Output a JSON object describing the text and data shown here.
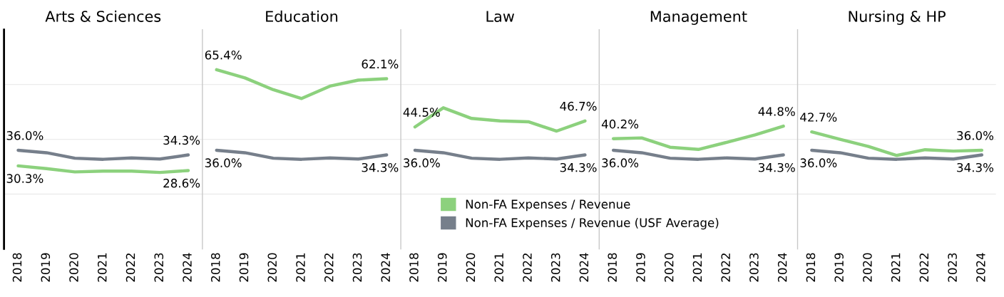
{
  "chart_data": [
    {
      "type": "line",
      "title": "Arts & Sciences",
      "categories": [
        "2018",
        "2019",
        "2020",
        "2021",
        "2022",
        "2023",
        "2024"
      ],
      "ylim": [
        0,
        80
      ],
      "yticks": [
        {
          "value": 20,
          "label": null
        },
        {
          "value": 40,
          "label": null
        },
        {
          "value": 60,
          "label": null
        }
      ],
      "grid": "y",
      "tick_labels": "x",
      "legend": false,
      "series": [
        {
          "color": "#8cd17d",
          "values": [
            30.3,
            29.3,
            28.1,
            28.4,
            28.4,
            27.9,
            28.6
          ],
          "value_labels": [
            "30.3%",
            null,
            null,
            null,
            null,
            null,
            "28.6%"
          ]
        },
        {
          "color": "#767f8b",
          "values": [
            36.0,
            35.1,
            33.1,
            32.7,
            33.2,
            32.8,
            34.3
          ],
          "value_labels": [
            "36.0%",
            null,
            null,
            null,
            null,
            null,
            "34.3%"
          ]
        }
      ]
    },
    {
      "type": "line",
      "title": "Education",
      "categories": [
        "2018",
        "2019",
        "2020",
        "2021",
        "2022",
        "2023",
        "2024"
      ],
      "ylim": [
        0,
        80
      ],
      "yticks": [
        {
          "value": 20,
          "label": null
        },
        {
          "value": 40,
          "label": null
        },
        {
          "value": 60,
          "label": null
        }
      ],
      "grid": "y",
      "tick_labels": "x",
      "legend": false,
      "series": [
        {
          "color": "#8cd17d",
          "values": [
            65.4,
            62.4,
            58.1,
            54.9,
            59.4,
            61.6,
            62.1
          ],
          "value_labels": [
            "65.4%",
            null,
            null,
            null,
            null,
            null,
            "62.1%"
          ]
        },
        {
          "color": "#767f8b",
          "values": [
            36.0,
            35.1,
            33.1,
            32.7,
            33.2,
            32.8,
            34.3
          ],
          "value_labels": [
            "36.0%",
            null,
            null,
            null,
            null,
            null,
            "34.3%"
          ]
        }
      ]
    },
    {
      "type": "line",
      "title": "Law",
      "categories": [
        "2018",
        "2019",
        "2020",
        "2021",
        "2022",
        "2023",
        "2024"
      ],
      "ylim": [
        0,
        80
      ],
      "yticks": [
        {
          "value": 20,
          "label": null
        },
        {
          "value": 40,
          "label": null
        },
        {
          "value": 60,
          "label": null
        }
      ],
      "grid": "y",
      "tick_labels": "x",
      "legend": "bottom",
      "series": [
        {
          "name": "Non-FA Expenses / Revenue",
          "color": "#8cd17d",
          "values": [
            44.5,
            51.5,
            47.6,
            46.7,
            46.4,
            43.0,
            46.7
          ],
          "value_labels": [
            "44.5%",
            null,
            null,
            null,
            null,
            null,
            "46.7%"
          ]
        },
        {
          "name": "Non-FA Expenses / Revenue (USF Average)",
          "color": "#767f8b",
          "values": [
            36.0,
            35.1,
            33.1,
            32.7,
            33.2,
            32.8,
            34.3
          ],
          "value_labels": [
            "36.0%",
            null,
            null,
            null,
            null,
            null,
            "34.3%"
          ]
        }
      ]
    },
    {
      "type": "line",
      "title": "Management",
      "categories": [
        "2018",
        "2019",
        "2020",
        "2021",
        "2022",
        "2023",
        "2024"
      ],
      "ylim": [
        0,
        80
      ],
      "yticks": [
        {
          "value": 20,
          "label": null
        },
        {
          "value": 40,
          "label": null
        },
        {
          "value": 60,
          "label": null
        }
      ],
      "grid": "y",
      "tick_labels": "x",
      "legend": false,
      "series": [
        {
          "color": "#8cd17d",
          "values": [
            40.2,
            40.5,
            37.1,
            36.3,
            38.9,
            41.6,
            44.8
          ],
          "value_labels": [
            "40.2%",
            null,
            null,
            null,
            null,
            null,
            "44.8%"
          ]
        },
        {
          "color": "#767f8b",
          "values": [
            36.0,
            35.1,
            33.1,
            32.7,
            33.2,
            32.8,
            34.3
          ],
          "value_labels": [
            "36.0%",
            null,
            null,
            null,
            null,
            null,
            "34.3%"
          ]
        }
      ]
    },
    {
      "type": "line",
      "title": "Nursing & HP",
      "categories": [
        "2018",
        "2019",
        "2020",
        "2021",
        "2022",
        "2023",
        "2024"
      ],
      "ylim": [
        0,
        80
      ],
      "yticks": [
        {
          "value": 20,
          "label": null
        },
        {
          "value": 40,
          "label": null
        },
        {
          "value": 60,
          "label": null
        }
      ],
      "grid": "y",
      "tick_labels": "x",
      "legend": false,
      "series": [
        {
          "color": "#8cd17d",
          "values": [
            42.7,
            40.0,
            37.4,
            34.1,
            36.2,
            35.7,
            36.0
          ],
          "value_labels": [
            "42.7%",
            null,
            null,
            null,
            null,
            null,
            "36.0%"
          ]
        },
        {
          "color": "#767f8b",
          "values": [
            36.0,
            35.1,
            33.1,
            32.7,
            33.2,
            32.8,
            34.3
          ],
          "value_labels": [
            "36.0%",
            null,
            null,
            null,
            null,
            null,
            "34.3%"
          ]
        }
      ]
    }
  ]
}
